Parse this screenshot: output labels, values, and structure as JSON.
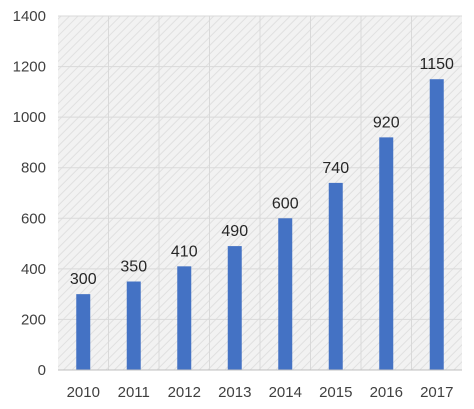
{
  "chart_data": {
    "type": "bar",
    "categories": [
      "2010",
      "2011",
      "2012",
      "2013",
      "2014",
      "2015",
      "2016",
      "2017"
    ],
    "values": [
      300,
      350,
      410,
      490,
      600,
      740,
      920,
      1150
    ],
    "data_labels": [
      "300",
      "350",
      "410",
      "490",
      "600",
      "740",
      "920",
      "1150"
    ],
    "title": "",
    "xlabel": "",
    "ylabel": "",
    "ylim": [
      0,
      1400
    ],
    "y_ticks": [
      0,
      200,
      400,
      600,
      800,
      1000,
      1200,
      1400
    ],
    "y_tick_labels": [
      "0",
      "200",
      "400",
      "600",
      "800",
      "1000",
      "1200",
      "1400"
    ],
    "grid": true,
    "legend": "none",
    "colors": {
      "bar": "#4472C4",
      "plot_background": "#F2F2F2",
      "hatch": "#E0E0E0",
      "gridline": "#D9D9D9",
      "axis_line": "#BFBFBF"
    }
  }
}
